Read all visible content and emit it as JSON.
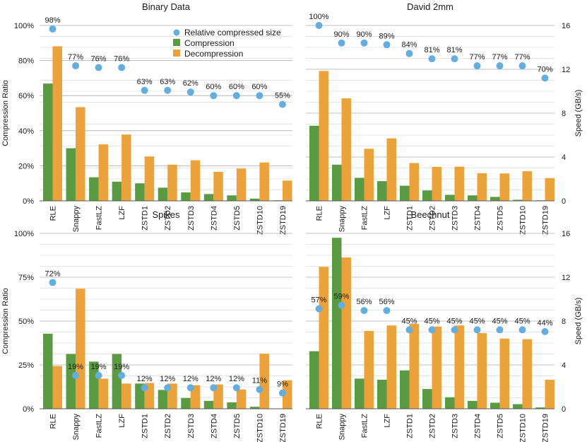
{
  "colors": {
    "compression": "#5a9a42",
    "decompression": "#eba23b",
    "relative": "#63aee0",
    "grid_major": "#aaaaaa",
    "grid_minor": "#dddddd",
    "axis": "#555555"
  },
  "legend": {
    "relative": "Relative compressed size",
    "compression": "Compression",
    "decompression": "Decompression"
  },
  "chart_data": [
    {
      "type": "bar",
      "title": "Binary Data",
      "categories": [
        "RLE",
        "Snappy",
        "FastLZ",
        "LZF",
        "ZSTD1",
        "ZSTD2",
        "ZSTD3",
        "ZSTD4",
        "ZSTD5",
        "ZSTD10",
        "ZSTD19"
      ],
      "ylabel": "Compression Ratio",
      "y2label": "",
      "ylim": [
        0,
        100
      ],
      "yticks": [
        "0%",
        "20%",
        "40%",
        "60%",
        "80%",
        "100%"
      ],
      "y2lim": [
        0,
        16
      ],
      "y2ticks": [],
      "series": [
        {
          "name": "Compression",
          "axis": "right",
          "values": [
            10.7,
            4.8,
            2.15,
            1.75,
            1.6,
            1.2,
            0.77,
            0.62,
            0.5,
            0.2,
            0.05
          ]
        },
        {
          "name": "Decompression",
          "axis": "right",
          "values": [
            14.1,
            8.55,
            5.15,
            6.05,
            4.05,
            3.3,
            3.7,
            2.65,
            2.95,
            3.5,
            1.85
          ]
        },
        {
          "name": "Relative compressed size",
          "axis": "left",
          "values": [
            98,
            77,
            76,
            76,
            63,
            63,
            62,
            60,
            60,
            60,
            55
          ],
          "labels": [
            "98%",
            "77%",
            "76%",
            "76%",
            "63%",
            "63%",
            "62%",
            "60%",
            "60%",
            "60%",
            "55%"
          ]
        }
      ]
    },
    {
      "type": "bar",
      "title": "David 2mm",
      "categories": [
        "RLE",
        "Snappy",
        "FastLZ",
        "LZF",
        "ZSTD1",
        "ZSTD2",
        "ZSTD3",
        "ZSTD4",
        "ZSTD5",
        "ZSTD10",
        "ZSTD19"
      ],
      "ylabel": "",
      "y2label": "Speed (GB/s)",
      "ylim": [
        0,
        100
      ],
      "yticks": [],
      "y2lim": [
        0,
        16
      ],
      "y2ticks": [
        "0",
        "4",
        "8",
        "12",
        "16"
      ],
      "series": [
        {
          "name": "Compression",
          "axis": "right",
          "values": [
            6.85,
            3.3,
            2.1,
            1.8,
            1.38,
            0.95,
            0.55,
            0.5,
            0.36,
            0.1,
            0.05
          ]
        },
        {
          "name": "Decompression",
          "axis": "right",
          "values": [
            11.85,
            9.35,
            4.75,
            5.7,
            3.45,
            3.1,
            3.12,
            2.52,
            2.5,
            2.7,
            2.08
          ]
        },
        {
          "name": "Relative compressed size",
          "axis": "left",
          "values": [
            100,
            90,
            90,
            89,
            84,
            81,
            81,
            77,
            77,
            77,
            70
          ],
          "labels": [
            "100%",
            "90%",
            "90%",
            "89%",
            "84%",
            "81%",
            "81%",
            "77%",
            "77%",
            "77%",
            "70%"
          ]
        }
      ]
    },
    {
      "type": "bar",
      "title": "Spikes",
      "categories": [
        "RLE",
        "Snappy",
        "FastLZ",
        "LZF",
        "ZSTD1",
        "ZSTD2",
        "ZSTD3",
        "ZSTD4",
        "ZSTD5",
        "ZSTD10",
        "ZSTD19"
      ],
      "ylabel": "Compression Ratio",
      "y2label": "",
      "ylim": [
        0,
        100
      ],
      "yticks": [
        "0%",
        "25%",
        "50%",
        "75%",
        "100%"
      ],
      "y2lim": [
        0,
        16
      ],
      "y2ticks": [],
      "series": [
        {
          "name": "Compression",
          "axis": "right",
          "values": [
            6.85,
            5.0,
            4.3,
            5.0,
            2.3,
            1.72,
            0.98,
            0.72,
            0.58,
            0.18,
            0.03
          ]
        },
        {
          "name": "Decompression",
          "axis": "right",
          "values": [
            3.9,
            10.95,
            2.75,
            2.3,
            2.35,
            2.3,
            2.15,
            2.22,
            1.76,
            5.02,
            2.6
          ]
        },
        {
          "name": "Relative compressed size",
          "axis": "left",
          "values": [
            72,
            19,
            19,
            19,
            12,
            12,
            12,
            12,
            12,
            11,
            9
          ],
          "labels": [
            "72%",
            "19%",
            "19%",
            "19%",
            "12%",
            "12%",
            "12%",
            "12%",
            "12%",
            "11%",
            "9%"
          ]
        }
      ]
    },
    {
      "type": "bar",
      "title": "Beechnut",
      "categories": [
        "RLE",
        "Snappy",
        "FastLZ",
        "LZF",
        "ZSTD1",
        "ZSTD2",
        "ZSTD3",
        "ZSTD4",
        "ZSTD5",
        "ZSTD10",
        "ZSTD19"
      ],
      "ylabel": "",
      "y2label": "Speed (GB/s)",
      "ylim": [
        0,
        100
      ],
      "yticks": [],
      "y2lim": [
        0,
        16
      ],
      "y2ticks": [
        "0",
        "4",
        "8",
        "12",
        "16"
      ],
      "series": [
        {
          "name": "Compression",
          "axis": "right",
          "values": [
            5.25,
            15.6,
            2.75,
            2.65,
            3.5,
            1.8,
            1.05,
            0.72,
            0.55,
            0.42,
            0.12
          ]
        },
        {
          "name": "Decompression",
          "axis": "right",
          "values": [
            12.95,
            13.8,
            7.1,
            7.6,
            7.75,
            7.5,
            7.6,
            6.9,
            6.4,
            6.35,
            2.65
          ]
        },
        {
          "name": "Relative compressed size",
          "axis": "left",
          "values": [
            57,
            59,
            56,
            56,
            45,
            45,
            45,
            45,
            45,
            45,
            44
          ],
          "labels": [
            "57%",
            "59%",
            "56%",
            "56%",
            "45%",
            "45%",
            "45%",
            "45%",
            "45%",
            "45%",
            "44%"
          ]
        }
      ]
    }
  ]
}
